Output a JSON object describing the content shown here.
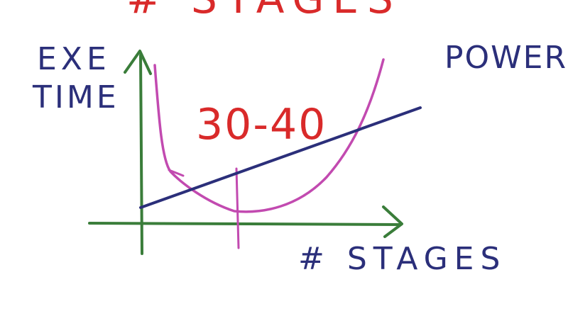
{
  "title_partial": "# STAGES",
  "axes": {
    "y_label_line1": "EXE",
    "y_label_line2": "TIME",
    "x_label": "# STAGES"
  },
  "curves": {
    "power_label": "POWER"
  },
  "annotation": {
    "optimum_range": "30-40"
  },
  "colors": {
    "axes": "#3a7d3a",
    "blue": "#2b2f7a",
    "magenta": "#c24ab0",
    "red": "#d92a2a"
  }
}
